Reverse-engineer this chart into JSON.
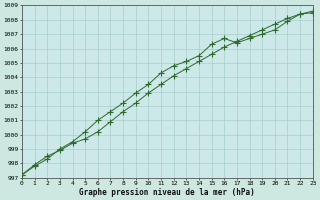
{
  "x": [
    0,
    1,
    2,
    3,
    4,
    5,
    6,
    7,
    8,
    9,
    10,
    11,
    12,
    13,
    14,
    15,
    16,
    17,
    18,
    19,
    20,
    21,
    22,
    23
  ],
  "line1": [
    997.2,
    997.9,
    998.5,
    998.9,
    999.4,
    999.7,
    1000.2,
    1000.9,
    1001.6,
    1002.2,
    1002.9,
    1003.5,
    1004.1,
    1004.6,
    1005.1,
    1005.6,
    1006.1,
    1006.5,
    1006.9,
    1007.3,
    1007.7,
    1008.1,
    1008.4,
    1008.6
  ],
  "line2": [
    997.2,
    997.8,
    998.3,
    999.0,
    999.5,
    1000.2,
    1001.0,
    1001.6,
    1002.2,
    1002.9,
    1003.5,
    1004.3,
    1004.8,
    1005.1,
    1005.5,
    1006.3,
    1006.7,
    1006.4,
    1006.7,
    1007.0,
    1007.3,
    1007.9,
    1008.4,
    1008.5
  ],
  "line_color": "#2d6a2d",
  "bg_color": "#cce8e0",
  "grid_color": "#a8cfc8",
  "plot_bg": "#cce8e8",
  "xlabel": "Graphe pression niveau de la mer (hPa)",
  "ylim": [
    997,
    1009
  ],
  "xlim": [
    0,
    23
  ],
  "yticks": [
    997,
    998,
    999,
    1000,
    1001,
    1002,
    1003,
    1004,
    1005,
    1006,
    1007,
    1008,
    1009
  ],
  "xticks": [
    0,
    1,
    2,
    3,
    4,
    5,
    6,
    7,
    8,
    9,
    10,
    11,
    12,
    13,
    14,
    15,
    16,
    17,
    18,
    19,
    20,
    21,
    22,
    23
  ]
}
